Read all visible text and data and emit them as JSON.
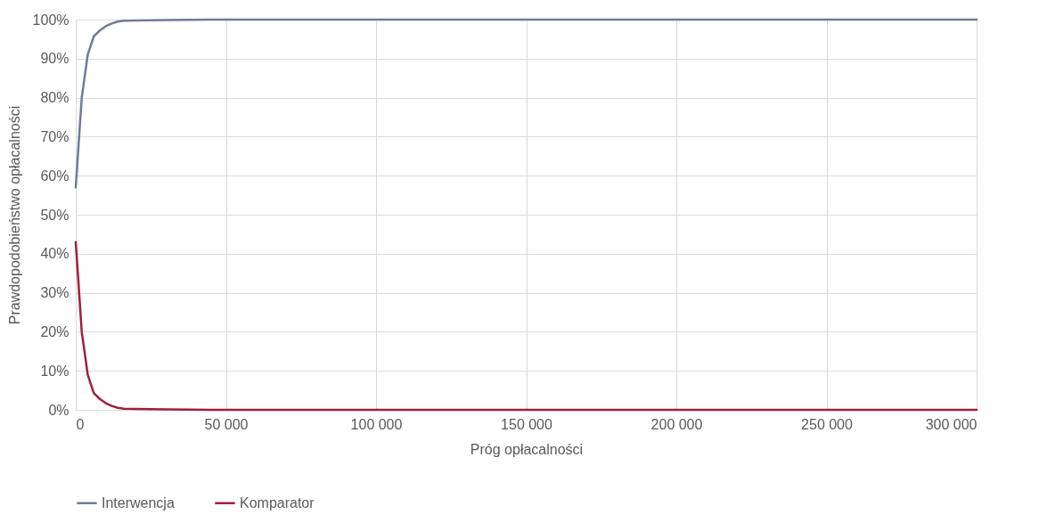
{
  "chart_data": {
    "type": "line",
    "xlabel": "Próg opłacalności",
    "ylabel": "Prawdopodobieństwo opłacalności",
    "x": [
      0,
      2000,
      4000,
      6000,
      8000,
      10000,
      12000,
      14000,
      16000,
      20000,
      30000,
      45000,
      100000,
      200000,
      300000
    ],
    "series": [
      {
        "name": "Interwencja",
        "color": "#737b95",
        "values": [
          57,
          80,
          91,
          95.7,
          97.2,
          98.3,
          99,
          99.5,
          99.7,
          99.8,
          99.9,
          100,
          100,
          100,
          100
        ]
      },
      {
        "name": "Komparator",
        "color": "#a21d3e",
        "values": [
          43,
          20,
          9,
          4.3,
          2.8,
          1.7,
          1,
          0.5,
          0.3,
          0.2,
          0.1,
          0,
          0,
          0,
          0
        ]
      }
    ],
    "xlim": [
      0,
      300000
    ],
    "xticks": [
      0,
      {
        "value": 50000,
        "label": "50 000"
      },
      {
        "value": 100000,
        "label": "100 000"
      },
      {
        "value": 150000,
        "label": "150 000"
      },
      {
        "value": 200000,
        "label": "200 000"
      },
      {
        "value": 250000,
        "label": "250 000"
      },
      {
        "value": 300000,
        "label": "300 000"
      }
    ],
    "ylim": [
      0,
      100
    ],
    "yticks": [
      {
        "value": 0,
        "label": "0%"
      },
      {
        "value": 10,
        "label": "10%"
      },
      {
        "value": 20,
        "label": "20%"
      },
      {
        "value": 30,
        "label": "30%"
      },
      {
        "value": 40,
        "label": "40%"
      },
      {
        "value": 50,
        "label": "50%"
      },
      {
        "value": 60,
        "label": "60%"
      },
      {
        "value": 70,
        "label": "70%"
      },
      {
        "value": 80,
        "label": "80%"
      },
      {
        "value": 90,
        "label": "90%"
      },
      {
        "value": 100,
        "label": "100%"
      }
    ],
    "grid": true,
    "legend": "bottom",
    "marker": "none",
    "line_style": "solid"
  }
}
